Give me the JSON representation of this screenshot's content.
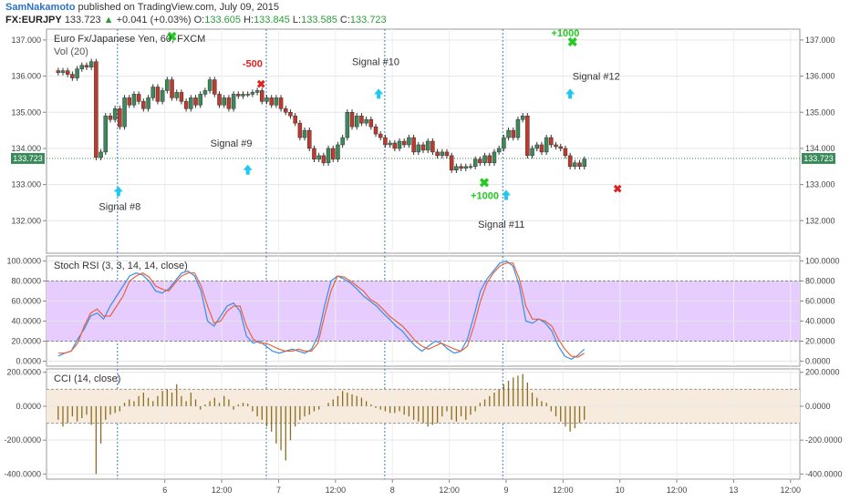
{
  "header": {
    "author": "SamNakamoto",
    "published": "published on TradingView.com, July 09, 2015",
    "symbol": "FX:EURJPY",
    "last": "133.723",
    "change": "+0.041 (+0.03%)",
    "o_label": "O:",
    "o_value": "133.605",
    "h_label": "H:",
    "h_value": "133.845",
    "l_label": "L:",
    "l_value": "133.585",
    "c_label": "C:",
    "c_value": "133.723"
  },
  "colors": {
    "up_candle": "#3c8a5c",
    "down_candle": "#c0392b",
    "stoch_k": "#3a8ee6",
    "stoch_d": "#e8633a",
    "stoch_band": "#e6ccff",
    "cci_bar": "#8c6d1f",
    "cci_band": "#f6ebdc",
    "signal_up": "#1ec8f0",
    "cross_win": "#22cc22",
    "cross_loss": "#dd2222",
    "tri_up": "#44bb44",
    "tri_down": "#e0b000"
  },
  "chart_data": [
    {
      "type": "candlestick",
      "title": "Euro Fx/Japanese Yen, 60, FXCM",
      "subtitle": "Vol (20)",
      "ylim": [
        131.1,
        137.3
      ],
      "yticks": [
        "137.000",
        "136.000",
        "135.000",
        "134.000",
        "133.000",
        "132.000"
      ],
      "ytick_values": [
        137,
        136,
        135,
        134,
        133,
        132
      ],
      "xticks": [
        "6",
        "12:00",
        "7",
        "12:00",
        "8",
        "12:00",
        "9",
        "12:00",
        "10",
        "12:00",
        "13",
        "12:00"
      ],
      "xtick_hours": [
        24,
        36,
        48,
        60,
        72,
        84,
        96,
        108,
        120,
        132,
        144,
        156
      ],
      "last_price": "133.723",
      "last_price_value": 133.723,
      "candles_close": [
        136.1,
        136.15,
        136.05,
        135.95,
        136.2,
        136.3,
        136.25,
        136.4,
        133.75,
        133.9,
        134.9,
        134.8,
        135.1,
        134.6,
        135.4,
        135.2,
        135.5,
        135.3,
        135.1,
        135.4,
        135.7,
        135.3,
        135.6,
        135.9,
        135.4,
        135.55,
        135.3,
        135.1,
        135.4,
        135.2,
        135.5,
        135.6,
        135.9,
        135.5,
        135.2,
        135.4,
        135.1,
        135.5,
        135.45,
        135.5,
        135.5,
        135.55,
        135.6,
        135.3,
        135.4,
        135.2,
        135.4,
        135.1,
        135.0,
        134.9,
        134.7,
        134.3,
        134.5,
        134.0,
        133.7,
        133.8,
        133.6,
        134.0,
        133.7,
        134.1,
        134.3,
        135.0,
        134.6,
        134.9,
        134.7,
        134.8,
        134.6,
        134.4,
        134.3,
        134.1,
        134.15,
        134.0,
        134.2,
        134.1,
        134.3,
        133.9,
        134.1,
        133.95,
        134.2,
        133.9,
        133.8,
        133.9,
        133.8,
        133.4,
        133.5,
        133.45,
        133.5,
        133.5,
        133.7,
        133.6,
        133.8,
        133.6,
        133.9,
        134.0,
        134.3,
        134.5,
        134.3,
        134.8,
        134.9,
        133.8,
        134.0,
        134.1,
        133.9,
        134.3,
        134.1,
        134.05,
        134.0,
        133.8,
        133.5,
        133.6,
        133.5,
        133.7
      ],
      "vertical_markers_hours": [
        14,
        45.4,
        70.4,
        95.3
      ],
      "annotations": [
        {
          "text": "Signal #8",
          "hour": 14.5,
          "price": 132.3
        },
        {
          "text": "Signal #9",
          "hour": 38,
          "price": 134.05
        },
        {
          "text": "-500",
          "hour": 42.5,
          "price": 136.25
        },
        {
          "text": "Signal #10",
          "hour": 68.5,
          "price": 136.3
        },
        {
          "text": "+1000",
          "hour": 91.5,
          "price": 132.6
        },
        {
          "text": "Signal #11",
          "hour": 95,
          "price": 131.8
        },
        {
          "text": "+1000",
          "hour": 108.5,
          "price": 137.1
        },
        {
          "text": "Signal #12",
          "hour": 115,
          "price": 135.9
        }
      ],
      "signal_arrows_hours": [
        [
          14.2,
          132.8
        ],
        [
          41.5,
          133.4
        ],
        [
          69.1,
          135.5
        ],
        [
          96.0,
          132.7
        ],
        [
          109.5,
          135.5
        ]
      ],
      "win_crosses": [
        [
          91.4,
          133.05
        ],
        [
          110,
          136.95
        ],
        [
          25.5,
          137.1
        ]
      ],
      "loss_crosses": [
        [
          44.3,
          135.8
        ],
        [
          119.5,
          132.9
        ]
      ]
    },
    {
      "type": "line",
      "title": "Stoch RSI (3, 3, 14, 14, close)",
      "ylim": [
        -5,
        105
      ],
      "yticks": [
        "100.0000",
        "80.0000",
        "60.0000",
        "40.0000",
        "20.0000",
        "0.0000"
      ],
      "ytick_values": [
        100,
        80,
        60,
        40,
        20,
        0
      ],
      "band": [
        20,
        80
      ],
      "series": [
        {
          "values": [
            5,
            8,
            10,
            22,
            32,
            45,
            48,
            42,
            55,
            65,
            75,
            85,
            88,
            86,
            80,
            70,
            68,
            72,
            80,
            88,
            90,
            85,
            70,
            40,
            35,
            45,
            55,
            58,
            50,
            25,
            18,
            20,
            15,
            10,
            8,
            10,
            12,
            10,
            8,
            12,
            25,
            55,
            80,
            85,
            82,
            78,
            72,
            65,
            60,
            55,
            48,
            42,
            35,
            30,
            22,
            15,
            10,
            15,
            20,
            18,
            12,
            8,
            10,
            22,
            45,
            70,
            82,
            90,
            98,
            100,
            95,
            75,
            40,
            38,
            42,
            38,
            30,
            15,
            5,
            2,
            6,
            12
          ]
        },
        {
          "values": [
            8,
            8,
            10,
            18,
            35,
            48,
            52,
            45,
            45,
            55,
            65,
            80,
            85,
            88,
            84,
            75,
            72,
            70,
            78,
            85,
            88,
            88,
            75,
            55,
            38,
            40,
            50,
            55,
            55,
            35,
            22,
            18,
            18,
            15,
            12,
            10,
            10,
            12,
            10,
            10,
            18,
            45,
            70,
            85,
            84,
            80,
            75,
            70,
            62,
            58,
            52,
            45,
            40,
            35,
            28,
            20,
            15,
            12,
            15,
            18,
            15,
            12,
            10,
            15,
            35,
            60,
            78,
            88,
            95,
            98,
            98,
            82,
            55,
            42,
            42,
            40,
            35,
            22,
            12,
            5,
            4,
            8
          ]
        }
      ]
    },
    {
      "type": "bar",
      "title": "CCI (14, close)",
      "ylim": [
        -430,
        220
      ],
      "yticks": [
        "200.0000",
        "0.0000",
        "-200.0000",
        "-400.0000"
      ],
      "ytick_values": [
        200,
        0,
        -200,
        -400
      ],
      "band": [
        -100,
        100
      ],
      "values": [
        -80,
        -120,
        -100,
        -60,
        -90,
        -70,
        -50,
        -110,
        -400,
        -220,
        -80,
        -50,
        -40,
        -30,
        20,
        40,
        30,
        60,
        80,
        50,
        30,
        60,
        90,
        100,
        80,
        130,
        60,
        30,
        80,
        40,
        -20,
        10,
        30,
        50,
        20,
        60,
        40,
        -20,
        10,
        20,
        15,
        -30,
        -60,
        -80,
        -120,
        -150,
        -220,
        -260,
        -320,
        -200,
        -120,
        -80,
        -60,
        -50,
        -30,
        -20,
        0,
        20,
        40,
        60,
        90,
        80,
        70,
        60,
        50,
        30,
        10,
        -10,
        -20,
        -30,
        -40,
        -40,
        -30,
        -50,
        -60,
        -80,
        -90,
        -100,
        -120,
        -110,
        -100,
        -60,
        -30,
        -80,
        -90,
        -60,
        -80,
        -50,
        -30,
        20,
        40,
        60,
        80,
        100,
        130,
        150,
        170,
        180,
        190,
        140,
        80,
        50,
        30,
        20,
        -30,
        -60,
        -90,
        -120,
        -150,
        -130,
        -100,
        -80
      ]
    }
  ]
}
